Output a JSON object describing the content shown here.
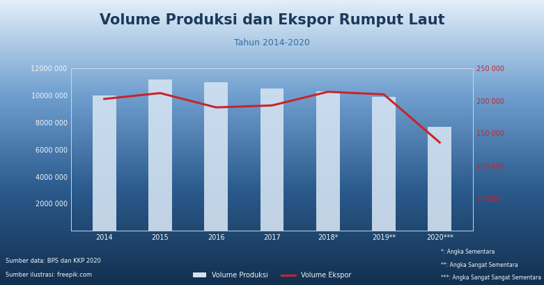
{
  "chart_data": {
    "type": "bar",
    "title": "Volume Produksi dan Ekspor Rumput Laut",
    "subtitle": "Tahun 2014-2020",
    "categories": [
      "2014",
      "2015",
      "2016",
      "2017",
      "2018*",
      "2019**",
      "2020***"
    ],
    "series": [
      {
        "name": "Volume Produksi",
        "type": "bar",
        "color": "#d3e2f1",
        "values": [
          10000000,
          11200000,
          11000000,
          10500000,
          10300000,
          9900000,
          7700000
        ]
      },
      {
        "name": "Volume Ekspor",
        "type": "line",
        "axis": "y2",
        "color": "#c8242b",
        "values": [
          203000,
          212000,
          190000,
          193000,
          214000,
          210000,
          136000
        ]
      }
    ],
    "ylim": [
      0,
      12000000
    ],
    "yticks": [
      {
        "value": 2000000,
        "label": "2000 000"
      },
      {
        "value": 4000000,
        "label": "4000 000"
      },
      {
        "value": 6000000,
        "label": "6000 000"
      },
      {
        "value": 8000000,
        "label": "8000 000"
      },
      {
        "value": 10000000,
        "label": "10000 000"
      },
      {
        "value": 12000000,
        "label": "12000 000"
      }
    ],
    "y2lim": [
      0,
      250000
    ],
    "y2ticks": [
      {
        "value": 50000,
        "label": "50 000"
      },
      {
        "value": 100000,
        "label": "100 000"
      },
      {
        "value": 150000,
        "label": "150 000"
      },
      {
        "value": 200000,
        "label": "200 000"
      },
      {
        "value": 250000,
        "label": "250 000"
      }
    ],
    "grid": false,
    "legend": "lower center",
    "annotations": [
      "Sumber data: BPS dan KKP 2020",
      "Sumber ilustrasi: freepik.com",
      "*: Angka Sementara",
      "**: Angka Sangat Sementara",
      "***: Angka Sangat Sangat Sementara"
    ]
  }
}
